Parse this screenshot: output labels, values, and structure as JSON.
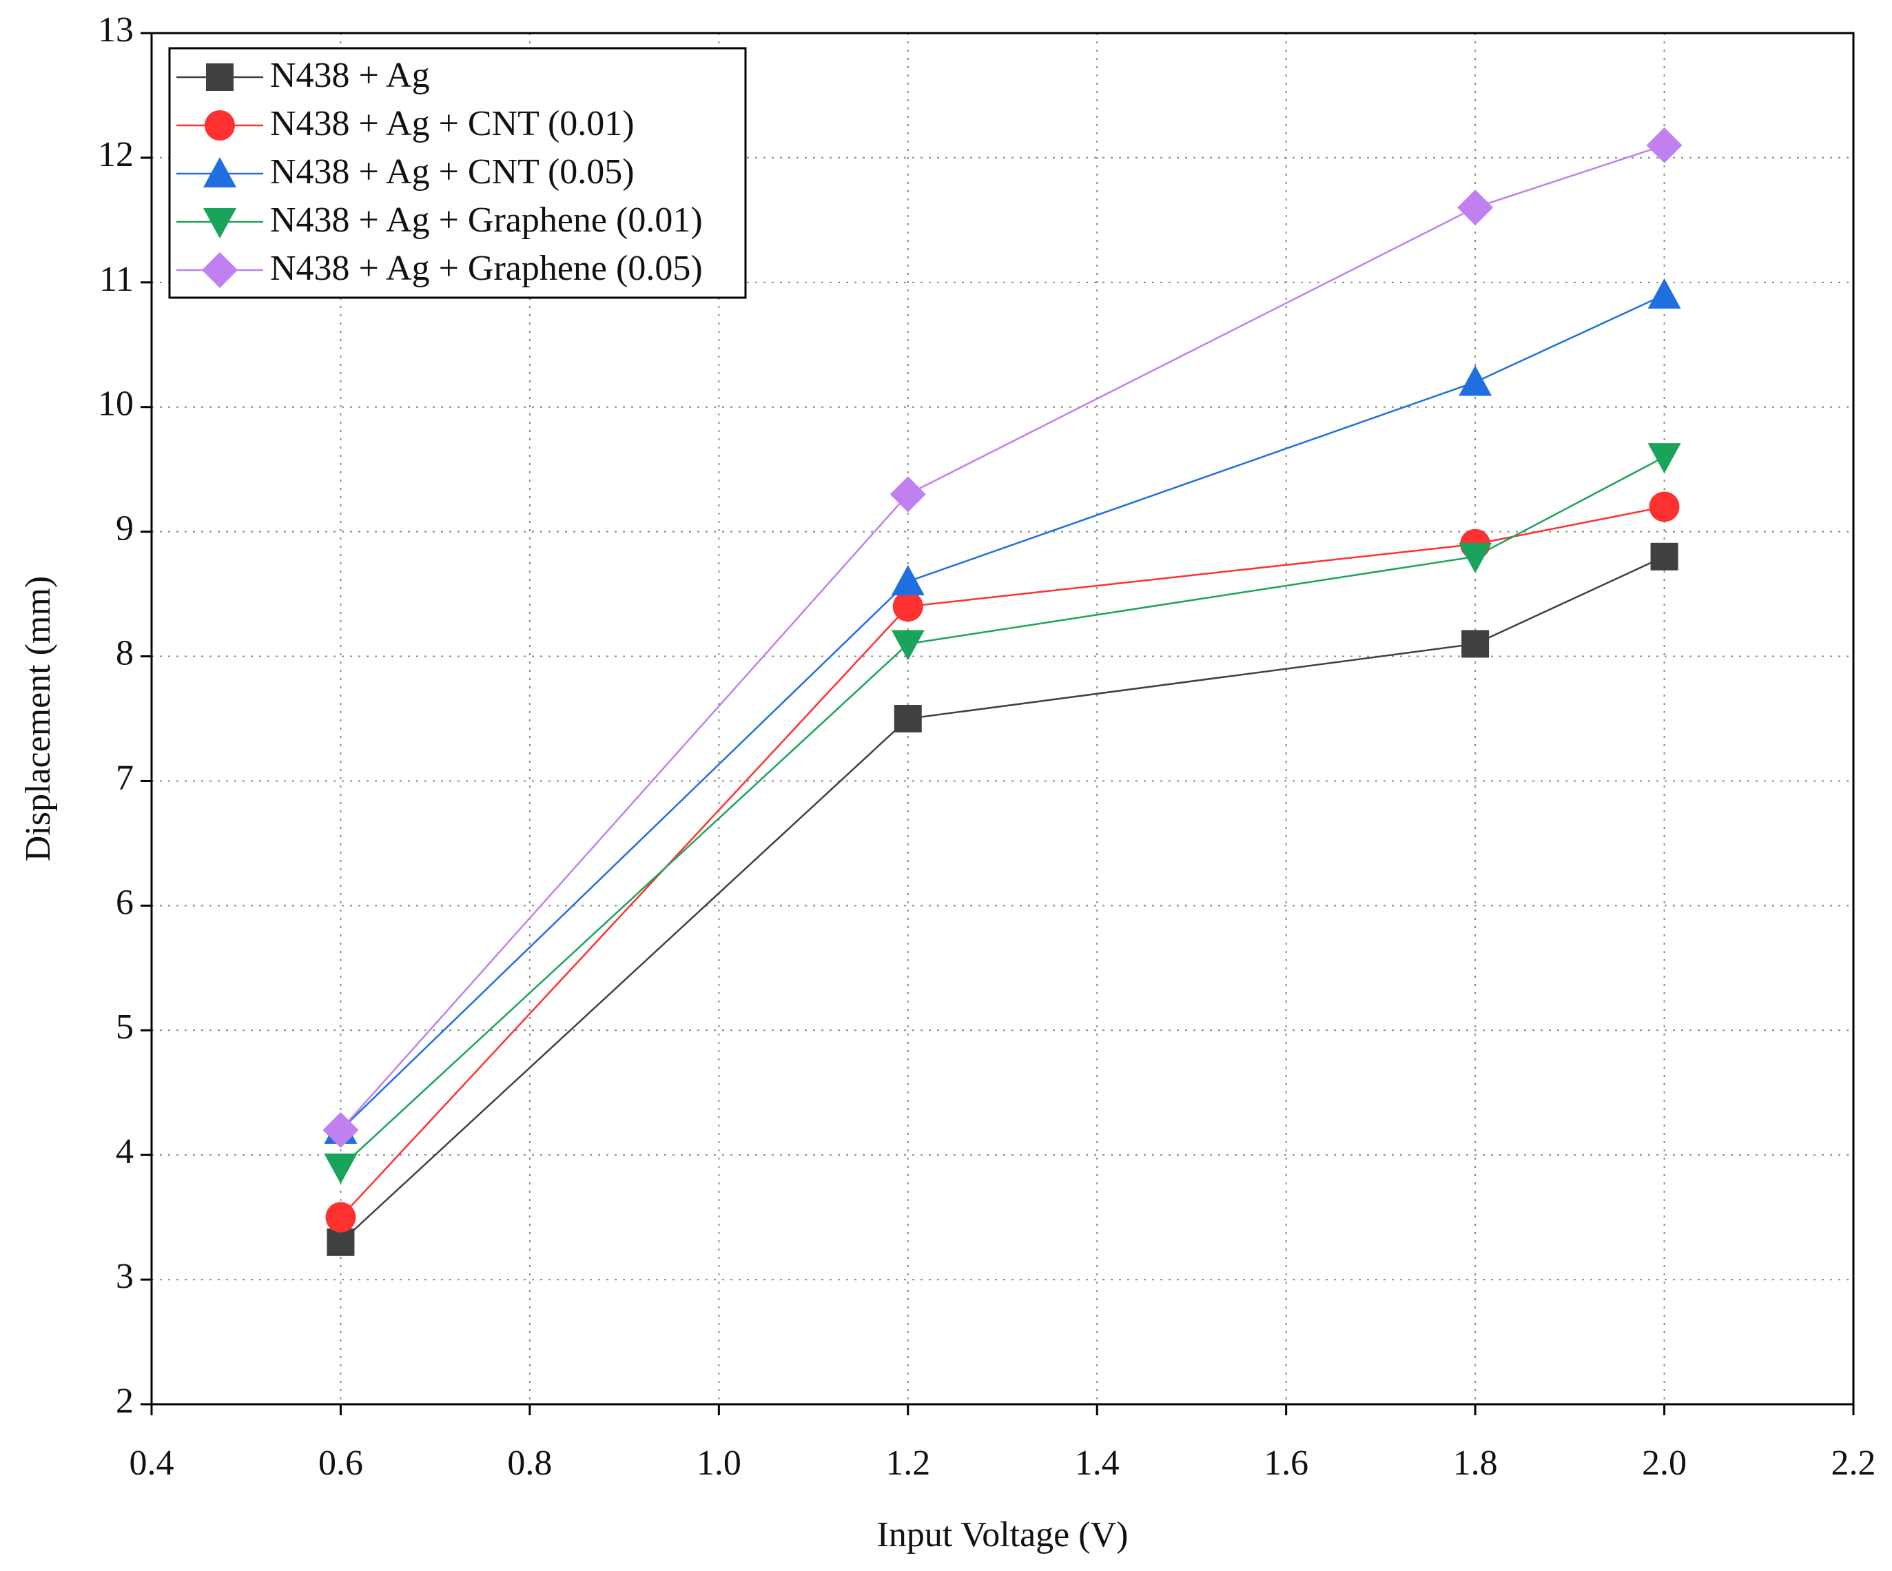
{
  "chart_data": {
    "type": "line",
    "x_label": "Input Voltage (V)",
    "y_label": "Displacement (mm)",
    "x": [
      0.6,
      1.2,
      1.8,
      2.0
    ],
    "series": [
      {
        "name": "N438 + Ag",
        "color": "#404040",
        "marker": "square",
        "values": [
          3.3,
          7.5,
          8.1,
          8.8
        ]
      },
      {
        "name": "N438 + Ag + CNT (0.01)",
        "color": "#ff3030",
        "marker": "circle",
        "values": [
          3.5,
          8.4,
          8.9,
          9.2
        ]
      },
      {
        "name": "N438 + Ag + CNT (0.05)",
        "color": "#1f6fe0",
        "marker": "triangle",
        "values": [
          4.2,
          8.6,
          10.2,
          10.9
        ]
      },
      {
        "name": "N438 + Ag + Graphene (0.01)",
        "color": "#1aa35a",
        "marker": "triangle-down",
        "values": [
          3.9,
          8.1,
          8.8,
          9.6
        ]
      },
      {
        "name": "N438 + Ag + Graphene (0.05)",
        "color": "#c080f0",
        "marker": "diamond",
        "values": [
          4.2,
          9.3,
          11.6,
          12.1
        ]
      }
    ],
    "xlim": [
      0.4,
      2.2
    ],
    "xticks": [
      0.4,
      0.6,
      0.8,
      {
        "value": 1,
        "label": "1.0"
      },
      1.2,
      1.4,
      1.6,
      1.8,
      {
        "value": 2,
        "label": "2.0"
      },
      2.2
    ],
    "ylim": [
      2,
      13
    ],
    "yticks": [
      2,
      3,
      4,
      5,
      6,
      7,
      8,
      9,
      10,
      11,
      12,
      13
    ],
    "grid": true,
    "legend": "upper left"
  }
}
